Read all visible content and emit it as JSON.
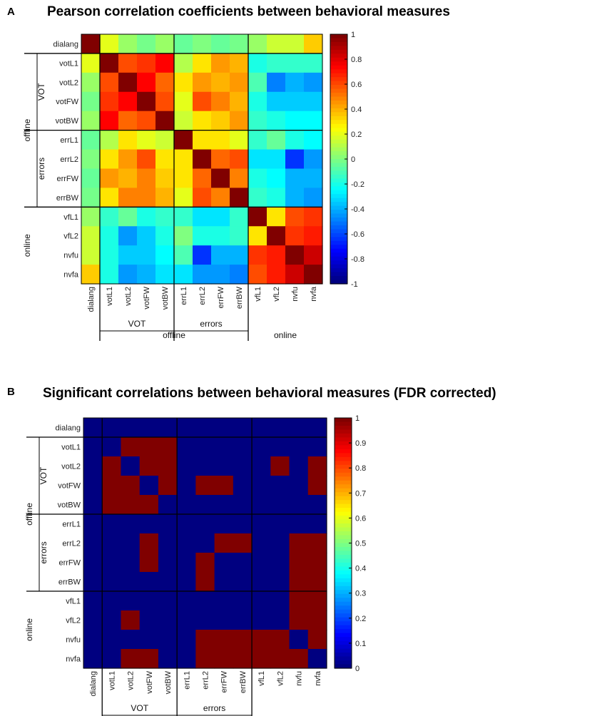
{
  "chart_data": [
    {
      "type": "heatmap",
      "panel_label": "A",
      "title": "Pearson correlation coefficients between behavioral measures",
      "variables": [
        "dialang",
        "votL1",
        "votL2",
        "votFW",
        "votBW",
        "errL1",
        "errL2",
        "errFW",
        "errBW",
        "vfL1",
        "vfL2",
        "nvfu",
        "nvfa"
      ],
      "groups": [
        {
          "label": "VOT",
          "members": [
            "votL1",
            "votL2",
            "votFW",
            "votBW"
          ]
        },
        {
          "label": "errors",
          "members": [
            "errL1",
            "errL2",
            "errFW",
            "errBW"
          ]
        },
        {
          "label": "offline",
          "members": [
            "votL1",
            "votL2",
            "votFW",
            "votBW",
            "errL1",
            "errL2",
            "errFW",
            "errBW"
          ]
        },
        {
          "label": "online",
          "members": [
            "vfL1",
            "vfL2",
            "nvfu",
            "nvfa"
          ]
        }
      ],
      "colorbar": {
        "min": -1,
        "max": 1,
        "ticks": [
          "1",
          "0.8",
          "0.6",
          "0.4",
          "0.2",
          "0",
          "-0.2",
          "-0.4",
          "-0.6",
          "-0.8",
          "-1"
        ],
        "colormap": "jet"
      },
      "matrix": [
        [
          1.0,
          0.2,
          0.05,
          -0.02,
          0.05,
          -0.05,
          0.0,
          -0.05,
          -0.02,
          0.05,
          0.15,
          0.15,
          0.35
        ],
        [
          0.2,
          1.0,
          0.6,
          0.65,
          0.75,
          0.1,
          0.3,
          0.45,
          0.4,
          -0.2,
          -0.15,
          -0.15,
          -0.15
        ],
        [
          0.05,
          0.6,
          1.0,
          0.75,
          0.55,
          0.3,
          0.45,
          0.4,
          0.45,
          -0.1,
          -0.5,
          -0.4,
          -0.45
        ],
        [
          -0.02,
          0.65,
          0.75,
          1.0,
          0.6,
          0.2,
          0.6,
          0.5,
          0.4,
          -0.2,
          -0.35,
          -0.35,
          -0.35
        ],
        [
          0.05,
          0.75,
          0.55,
          0.6,
          1.0,
          0.15,
          0.3,
          0.35,
          0.45,
          -0.15,
          -0.2,
          -0.25,
          -0.25
        ],
        [
          -0.05,
          0.1,
          0.3,
          0.2,
          0.15,
          1.0,
          0.3,
          0.3,
          0.2,
          -0.15,
          -0.05,
          -0.2,
          -0.25
        ],
        [
          0.0,
          0.3,
          0.45,
          0.6,
          0.3,
          0.3,
          1.0,
          0.55,
          0.6,
          -0.3,
          -0.3,
          -0.65,
          -0.45
        ],
        [
          -0.05,
          0.45,
          0.4,
          0.5,
          0.35,
          0.3,
          0.55,
          1.0,
          0.5,
          -0.2,
          -0.25,
          -0.4,
          -0.4
        ],
        [
          -0.02,
          0.3,
          0.5,
          0.5,
          0.4,
          0.2,
          0.6,
          0.5,
          1.0,
          -0.15,
          -0.2,
          -0.4,
          -0.45
        ],
        [
          0.05,
          -0.15,
          -0.05,
          -0.2,
          -0.15,
          -0.15,
          -0.3,
          -0.3,
          -0.15,
          1.0,
          0.3,
          0.6,
          0.65
        ],
        [
          0.15,
          -0.2,
          -0.45,
          -0.35,
          -0.2,
          0.0,
          -0.2,
          -0.2,
          -0.15,
          0.3,
          1.0,
          0.65,
          0.7
        ],
        [
          0.15,
          -0.2,
          -0.35,
          -0.35,
          -0.25,
          -0.1,
          -0.65,
          -0.4,
          -0.4,
          0.65,
          0.7,
          1.0,
          0.85
        ],
        [
          0.35,
          -0.2,
          -0.45,
          -0.4,
          -0.3,
          -0.3,
          -0.45,
          -0.45,
          -0.5,
          0.6,
          0.7,
          0.85,
          1.0
        ]
      ]
    },
    {
      "type": "heatmap",
      "panel_label": "B",
      "title": "Significant correlations between behavioral measures (FDR corrected)",
      "variables": [
        "dialang",
        "votL1",
        "votL2",
        "votFW",
        "votBW",
        "errL1",
        "errL2",
        "errFW",
        "errBW",
        "vfL1",
        "vfL2",
        "nvfu",
        "nvfa"
      ],
      "groups": [
        {
          "label": "VOT",
          "members": [
            "votL1",
            "votL2",
            "votFW",
            "votBW"
          ]
        },
        {
          "label": "errors",
          "members": [
            "errL1",
            "errL2",
            "errFW",
            "errBW"
          ]
        },
        {
          "label": "offline",
          "members": [
            "votL1",
            "votL2",
            "votFW",
            "votBW",
            "errL1",
            "errL2",
            "errFW",
            "errBW"
          ]
        },
        {
          "label": "online",
          "members": [
            "vfL1",
            "vfL2",
            "nvfu",
            "nvfa"
          ]
        }
      ],
      "colorbar": {
        "min": 0,
        "max": 1,
        "ticks": [
          "1",
          "0.9",
          "0.8",
          "0.7",
          "0.6",
          "0.5",
          "0.4",
          "0.3",
          "0.2",
          "0.1",
          "0"
        ],
        "colormap": "jet"
      },
      "matrix": [
        [
          0,
          0,
          0,
          0,
          0,
          0,
          0,
          0,
          0,
          0,
          0,
          0,
          0
        ],
        [
          0,
          0,
          1,
          1,
          1,
          0,
          0,
          0,
          0,
          0,
          0,
          0,
          0
        ],
        [
          0,
          1,
          0,
          1,
          1,
          0,
          0,
          0,
          0,
          0,
          1,
          0,
          1
        ],
        [
          0,
          1,
          1,
          0,
          1,
          0,
          1,
          1,
          0,
          0,
          0,
          0,
          1
        ],
        [
          0,
          1,
          1,
          1,
          0,
          0,
          0,
          0,
          0,
          0,
          0,
          0,
          0
        ],
        [
          0,
          0,
          0,
          0,
          0,
          0,
          0,
          0,
          0,
          0,
          0,
          0,
          0
        ],
        [
          0,
          0,
          0,
          1,
          0,
          0,
          0,
          1,
          1,
          0,
          0,
          1,
          1
        ],
        [
          0,
          0,
          0,
          1,
          0,
          0,
          1,
          0,
          0,
          0,
          0,
          1,
          1
        ],
        [
          0,
          0,
          0,
          0,
          0,
          0,
          1,
          0,
          0,
          0,
          0,
          1,
          1
        ],
        [
          0,
          0,
          0,
          0,
          0,
          0,
          0,
          0,
          0,
          0,
          0,
          1,
          1
        ],
        [
          0,
          0,
          1,
          0,
          0,
          0,
          0,
          0,
          0,
          0,
          0,
          1,
          1
        ],
        [
          0,
          0,
          0,
          0,
          0,
          0,
          1,
          1,
          1,
          1,
          1,
          0,
          1
        ],
        [
          0,
          0,
          1,
          1,
          0,
          0,
          1,
          1,
          1,
          1,
          1,
          1,
          0
        ]
      ]
    }
  ]
}
